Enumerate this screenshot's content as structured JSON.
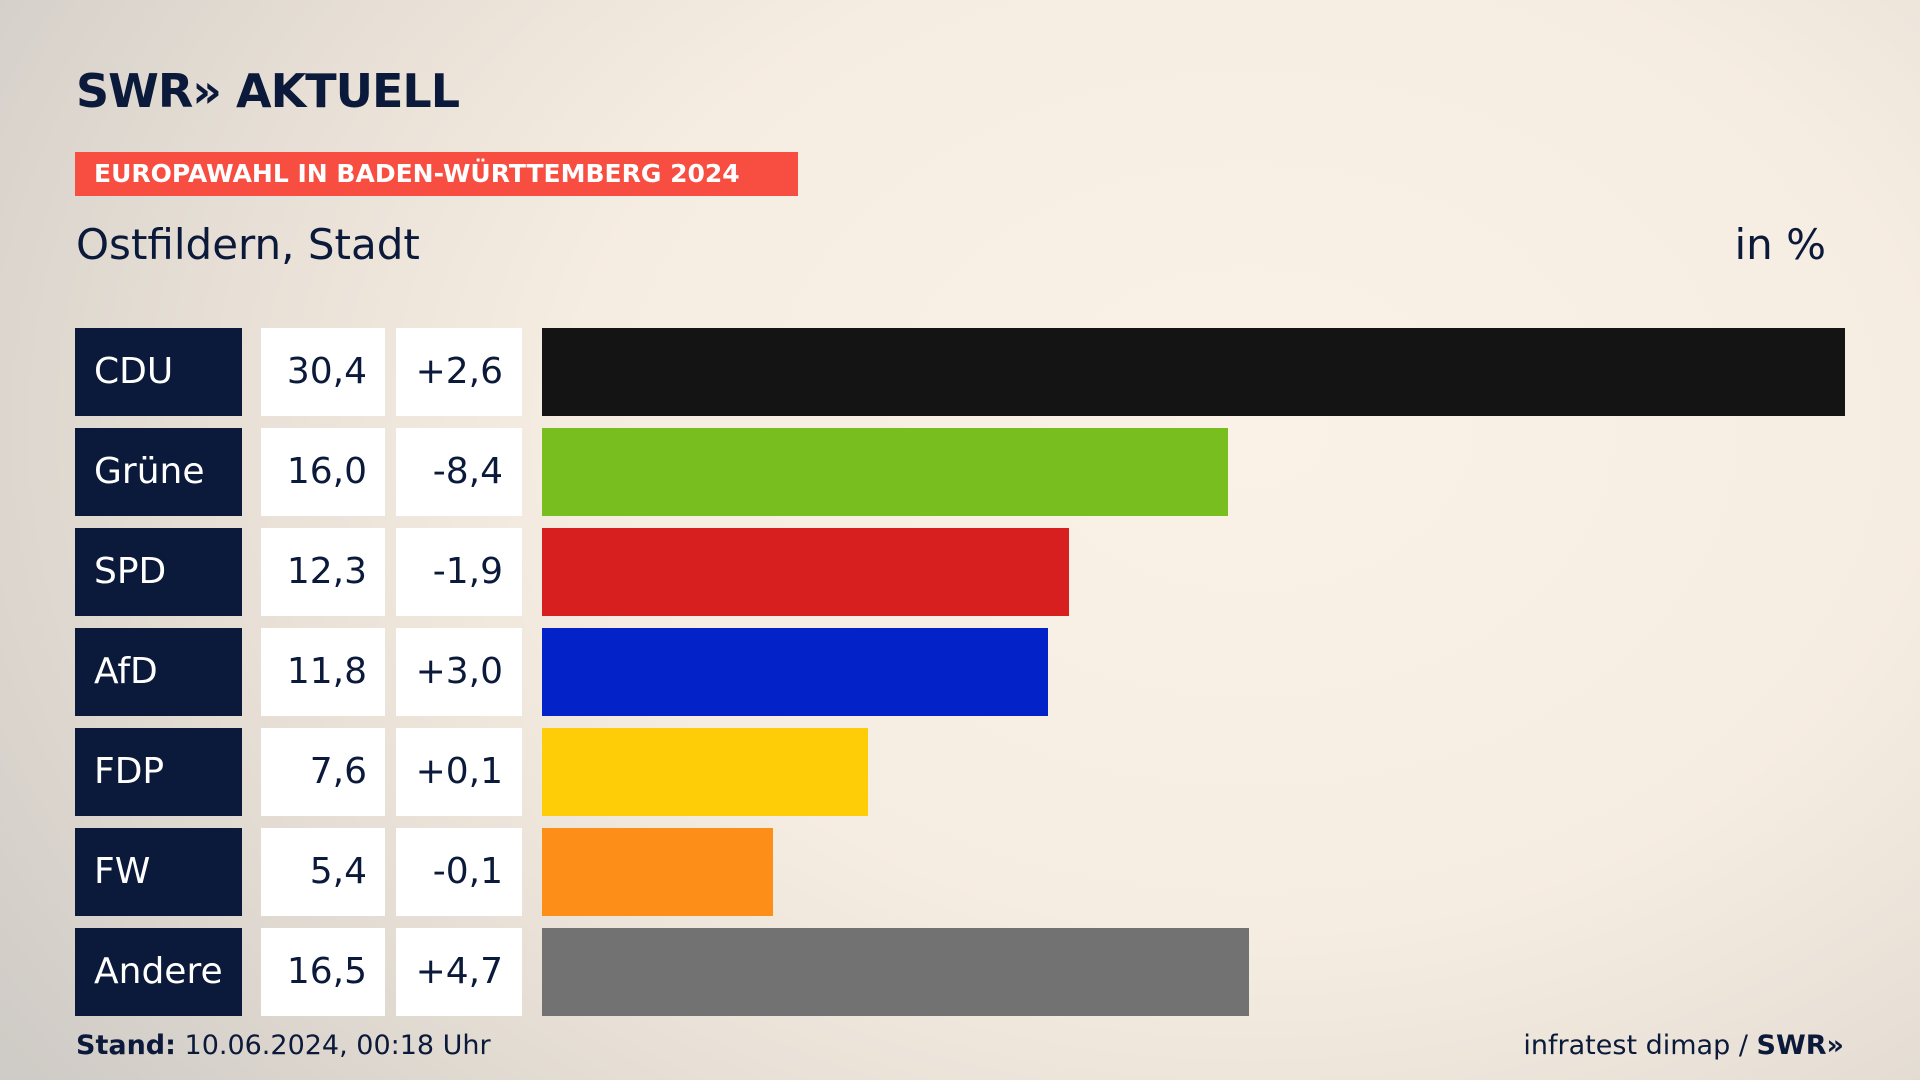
{
  "header": {
    "logo": "SWR» AKTUELL",
    "banner": "EUROPAWAHL IN BADEN-WÜRTTEMBERG 2024",
    "subtitle": "Ostfildern, Stadt",
    "unit": "in %"
  },
  "footer": {
    "stand_label": "Stand:",
    "stand_value": "10.06.2024, 00:18 Uhr",
    "source": "infratest dimap /",
    "source_logo": "SWR»"
  },
  "chart_data": {
    "type": "bar",
    "orientation": "horizontal",
    "title": "EUROPAWAHL IN BADEN-WÜRTTEMBERG 2024",
    "subtitle": "Ostfildern, Stadt",
    "unit": "in %",
    "categories": [
      "CDU",
      "Grüne",
      "SPD",
      "AfD",
      "FDP",
      "FW",
      "Andere"
    ],
    "values": [
      30.4,
      16.0,
      12.3,
      11.8,
      7.6,
      5.4,
      16.5
    ],
    "value_labels": [
      "30,4",
      "16,0",
      "12,3",
      "11,8",
      "7,6",
      "5,4",
      "16,5"
    ],
    "change_labels": [
      "+2,6",
      "-8,4",
      "-1,9",
      "+3,0",
      "+0,1",
      "-0,1",
      "+4,7"
    ],
    "colors": [
      "#141414",
      "#78be1e",
      "#d71f1f",
      "#0322c8",
      "#ffcd08",
      "#fd8e18",
      "#727273"
    ],
    "grid": false,
    "legend": "none"
  }
}
